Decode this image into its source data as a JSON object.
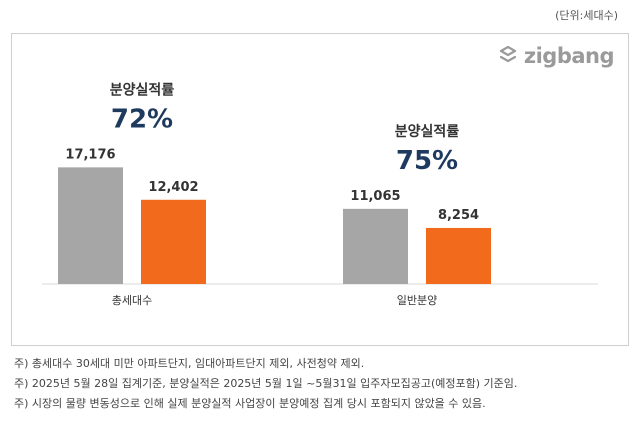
{
  "unit_label": "(단위:세대수)",
  "logo": {
    "text": "zigbang",
    "icon": "zigbang-logo-icon",
    "color": "#9a9a9a"
  },
  "colors": {
    "gray": "#a6a6a6",
    "orange": "#f26a1b",
    "rate_text": "#1f3a5f"
  },
  "chart_data": {
    "type": "bar",
    "categories": [
      "총세대수",
      "일반분양"
    ],
    "series": [
      {
        "values": [
          17176,
          11065
        ],
        "labels": [
          "17,176",
          "11,065"
        ],
        "color": "#a6a6a6"
      },
      {
        "values": [
          12402,
          8254
        ],
        "labels": [
          "12,402",
          "8,254"
        ],
        "color": "#f26a1b"
      }
    ],
    "annotations": [
      {
        "category": "총세대수",
        "title": "분양실적률",
        "value": "72%"
      },
      {
        "category": "일반분양",
        "title": "분양실적률",
        "value": "75%"
      }
    ],
    "ylim": [
      0,
      21500
    ],
    "grid": false,
    "legend": "none"
  },
  "notes": [
    "주) 총세대수 30세대 미만 아파트단지, 임대아파트단지 제외, 사전청약 제외.",
    "주) 2025년 5월 28일 집계기준, 분양실적은 2025년 5월 1일 ~5월31일 입주자모집공고(예정포함) 기준임.",
    "주) 시장의 물량 변동성으로 인해 실제 분양실적 사업장이 분양예정 집계 당시 포함되지 않았을 수 있음."
  ]
}
